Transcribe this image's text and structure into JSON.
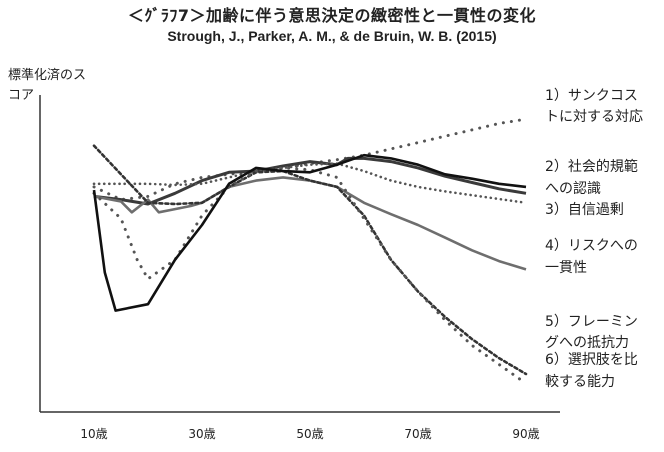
{
  "chart_data": {
    "type": "line",
    "title": "＜ｸﾞﾗﾌ7＞加齢に伴う意思決定の緻密性と一貫性の変化",
    "subtitle": "Strough, J., Parker, A. M., & de Bruin, W. B. (2015)",
    "xlabel": "",
    "ylabel": "標準化済のスコア",
    "ylim": [
      -3,
      2
    ],
    "xlim": [
      0,
      90
    ],
    "grid": false,
    "legend": "right, end of lines",
    "x_ticks": [
      {
        "value": 10,
        "label": "10歳"
      },
      {
        "value": 30,
        "label": "30歳"
      },
      {
        "value": 50,
        "label": "50歳"
      },
      {
        "value": 70,
        "label": "70歳"
      },
      {
        "value": 90,
        "label": "90歳"
      }
    ],
    "series": [
      {
        "name": "1）サンクコストに対する対応",
        "style": "sparse-dot",
        "points": [
          [
            10,
            0.55
          ],
          [
            15,
            0.35
          ],
          [
            20,
            0.4
          ],
          [
            25,
            0.6
          ],
          [
            30,
            0.7
          ],
          [
            35,
            0.75
          ],
          [
            40,
            0.8
          ],
          [
            45,
            0.85
          ],
          [
            50,
            0.92
          ],
          [
            55,
            0.98
          ],
          [
            60,
            1.05
          ],
          [
            65,
            1.15
          ],
          [
            70,
            1.25
          ],
          [
            75,
            1.35
          ],
          [
            80,
            1.45
          ],
          [
            85,
            1.55
          ],
          [
            90,
            1.62
          ]
        ]
      },
      {
        "name": "2）社会的規範への認識",
        "style": "solid-thick",
        "points": [
          [
            10,
            0.4
          ],
          [
            15,
            0.35
          ],
          [
            20,
            0.28
          ],
          [
            25,
            0.45
          ],
          [
            30,
            0.65
          ],
          [
            35,
            0.78
          ],
          [
            40,
            0.8
          ],
          [
            45,
            0.88
          ],
          [
            50,
            0.95
          ],
          [
            55,
            0.9
          ],
          [
            57,
            1.0
          ],
          [
            60,
            1.0
          ],
          [
            65,
            0.95
          ],
          [
            70,
            0.85
          ],
          [
            75,
            0.72
          ],
          [
            80,
            0.62
          ],
          [
            85,
            0.52
          ],
          [
            90,
            0.45
          ]
        ]
      },
      {
        "name": "3）自信過剰",
        "style": "dense-dot",
        "points": [
          [
            10,
            0.6
          ],
          [
            15,
            0.6
          ],
          [
            20,
            0.6
          ],
          [
            25,
            0.58
          ],
          [
            30,
            0.6
          ],
          [
            35,
            0.7
          ],
          [
            40,
            0.8
          ],
          [
            45,
            0.85
          ],
          [
            50,
            0.9
          ],
          [
            55,
            0.92
          ],
          [
            60,
            0.8
          ],
          [
            65,
            0.65
          ],
          [
            70,
            0.55
          ],
          [
            75,
            0.48
          ],
          [
            80,
            0.42
          ],
          [
            85,
            0.36
          ],
          [
            90,
            0.3
          ]
        ]
      },
      {
        "name": "4）リスクへの一貫性",
        "style": "solid-gray",
        "points": [
          [
            10,
            0.4
          ],
          [
            15,
            0.32
          ],
          [
            17,
            0.15
          ],
          [
            20,
            0.35
          ],
          [
            22,
            0.15
          ],
          [
            25,
            0.2
          ],
          [
            28,
            0.25
          ],
          [
            30,
            0.3
          ],
          [
            35,
            0.55
          ],
          [
            40,
            0.65
          ],
          [
            45,
            0.7
          ],
          [
            50,
            0.65
          ],
          [
            55,
            0.55
          ],
          [
            60,
            0.3
          ],
          [
            65,
            0.12
          ],
          [
            70,
            -0.05
          ],
          [
            75,
            -0.25
          ],
          [
            80,
            -0.45
          ],
          [
            85,
            -0.62
          ],
          [
            90,
            -0.75
          ]
        ]
      },
      {
        "name": "5）フレーミングへの抵抗力",
        "style": "dash-dot",
        "points": [
          [
            10,
            1.2
          ],
          [
            15,
            0.75
          ],
          [
            20,
            0.3
          ],
          [
            25,
            0.28
          ],
          [
            30,
            0.3
          ],
          [
            35,
            0.55
          ],
          [
            40,
            0.78
          ],
          [
            45,
            0.8
          ],
          [
            50,
            0.65
          ],
          [
            55,
            0.55
          ],
          [
            60,
            0.1
          ],
          [
            65,
            -0.6
          ],
          [
            70,
            -1.1
          ],
          [
            75,
            -1.5
          ],
          [
            80,
            -1.85
          ],
          [
            85,
            -2.15
          ],
          [
            90,
            -2.4
          ]
        ]
      },
      {
        "name": "6）選択肢を比較する能力",
        "style": "sparse-dot",
        "points": [
          [
            10,
            0.45
          ],
          [
            15,
            0.05
          ],
          [
            18,
            -0.6
          ],
          [
            20,
            -0.9
          ],
          [
            25,
            -0.6
          ],
          [
            30,
            0.1
          ],
          [
            35,
            0.55
          ],
          [
            40,
            0.8
          ],
          [
            45,
            0.85
          ],
          [
            50,
            0.82
          ],
          [
            55,
            0.7
          ],
          [
            60,
            0.05
          ],
          [
            65,
            -0.6
          ],
          [
            70,
            -1.1
          ],
          [
            75,
            -1.55
          ],
          [
            80,
            -1.95
          ],
          [
            85,
            -2.25
          ],
          [
            90,
            -2.55
          ]
        ]
      },
      {
        "name": "",
        "style": "solid-black",
        "points": [
          [
            10,
            0.5
          ],
          [
            12,
            -0.8
          ],
          [
            14,
            -1.4
          ],
          [
            20,
            -1.3
          ],
          [
            25,
            -0.6
          ],
          [
            30,
            -0.05
          ],
          [
            35,
            0.6
          ],
          [
            40,
            0.85
          ],
          [
            45,
            0.8
          ],
          [
            50,
            0.78
          ],
          [
            55,
            0.9
          ],
          [
            60,
            1.05
          ],
          [
            65,
            1.0
          ],
          [
            70,
            0.9
          ],
          [
            75,
            0.75
          ],
          [
            80,
            0.68
          ],
          [
            85,
            0.6
          ],
          [
            90,
            0.55
          ]
        ]
      }
    ],
    "legend_items": [
      {
        "lines": [
          "1）サンクコス",
          "トに対する対応"
        ]
      },
      {
        "lines": [
          "2）社会的規範",
          "への認識"
        ]
      },
      {
        "lines": [
          "3）自信過剰"
        ]
      },
      {
        "lines": [
          "4）リスクへの",
          "一貫性"
        ]
      },
      {
        "lines": [
          "5）フレーミン",
          "グへの抵抗力"
        ]
      },
      {
        "lines": [
          "6）選択肢を比",
          "較する能力"
        ]
      }
    ]
  }
}
